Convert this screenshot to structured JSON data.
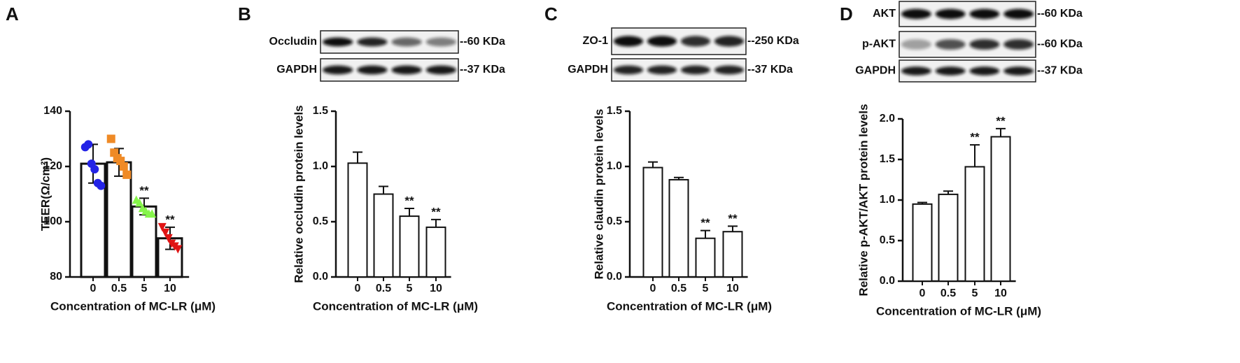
{
  "chart_data": [
    {
      "type": "bar",
      "panel": "A",
      "x_label": "Concentration of MC-LR (μM)",
      "y_label": "TEER(Ω/cm²)",
      "categories": [
        "0",
        "0.5",
        "5",
        "10"
      ],
      "values": [
        121,
        121.5,
        105.5,
        94
      ],
      "errors": [
        7,
        5,
        3,
        4
      ],
      "error_direction": "both",
      "points": [
        [
          127,
          128,
          121,
          119,
          114,
          113
        ],
        [
          130,
          125,
          123,
          122,
          120,
          117
        ],
        [
          108,
          107,
          105,
          104,
          103,
          103
        ],
        [
          98,
          96,
          94,
          92,
          91,
          90
        ]
      ],
      "point_colors": [
        "#2323e6",
        "#ef8a26",
        "#86f54a",
        "#e01414"
      ],
      "markers": [
        "circle",
        "square",
        "triangle",
        "triangle-down"
      ],
      "annotations": [
        null,
        null,
        "**",
        "**"
      ],
      "color": "#ffffff",
      "ylim": [
        80,
        140
      ],
      "yticks": [
        80,
        100,
        120,
        140
      ]
    },
    {
      "type": "bar",
      "panel": "B",
      "x_label": "Concentration of MC-LR (μM)",
      "y_label": "Relative  occludin protein  levels",
      "blots": [
        {
          "label": "Occludin",
          "size": "--60 KDa"
        },
        {
          "label": "GAPDH",
          "size": "--37 KDa"
        }
      ],
      "categories": [
        "0",
        "0.5",
        "5",
        "10"
      ],
      "values": [
        1.03,
        0.75,
        0.55,
        0.45
      ],
      "errors": [
        0.1,
        0.07,
        0.07,
        0.07
      ],
      "error_direction": "up",
      "annotations": [
        null,
        null,
        "**",
        "**"
      ],
      "color": "#ffffff",
      "ylim": [
        0,
        1.5
      ],
      "yticks": [
        {
          "value": 0,
          "label": "0.0"
        },
        0.5,
        {
          "value": 1,
          "label": "1.0"
        },
        1.5
      ]
    },
    {
      "type": "bar",
      "panel": "C",
      "x_label": "Concentration of MC-LR (μM)",
      "y_label": "Relative  claudin protein  levels",
      "blots": [
        {
          "label": "ZO-1",
          "size": "--250 KDa"
        },
        {
          "label": "GAPDH",
          "size": "--37 KDa"
        }
      ],
      "categories": [
        "0",
        "0.5",
        "5",
        "10"
      ],
      "values": [
        0.99,
        0.88,
        0.35,
        0.41
      ],
      "errors": [
        0.05,
        0.02,
        0.07,
        0.05
      ],
      "error_direction": "up",
      "annotations": [
        null,
        null,
        "**",
        "**"
      ],
      "color": "#ffffff",
      "ylim": [
        0,
        1.5
      ],
      "yticks": [
        {
          "value": 0,
          "label": "0.0"
        },
        0.5,
        {
          "value": 1,
          "label": "1.0"
        },
        1.5
      ]
    },
    {
      "type": "bar",
      "panel": "D",
      "x_label": "Concentration of MC-LR (μM)",
      "y_label": "Relative  p-AKT/AKT protein  levels",
      "blots": [
        {
          "label": "AKT",
          "size": "--60 KDa"
        },
        {
          "label": "p-AKT",
          "size": "--60 KDa"
        },
        {
          "label": "GAPDH",
          "size": "--37 KDa"
        }
      ],
      "categories": [
        "0",
        "0.5",
        "5",
        "10"
      ],
      "values": [
        0.95,
        1.07,
        1.41,
        1.78
      ],
      "errors": [
        0.02,
        0.04,
        0.27,
        0.1
      ],
      "error_direction": "up",
      "annotations": [
        null,
        null,
        "**",
        "**"
      ],
      "color": "#ffffff",
      "ylim": [
        0,
        2
      ],
      "yticks": [
        {
          "value": 0,
          "label": "0.0"
        },
        0.5,
        {
          "value": 1,
          "label": "1.0"
        },
        1.5,
        {
          "value": 2,
          "label": "2.0"
        }
      ]
    }
  ]
}
